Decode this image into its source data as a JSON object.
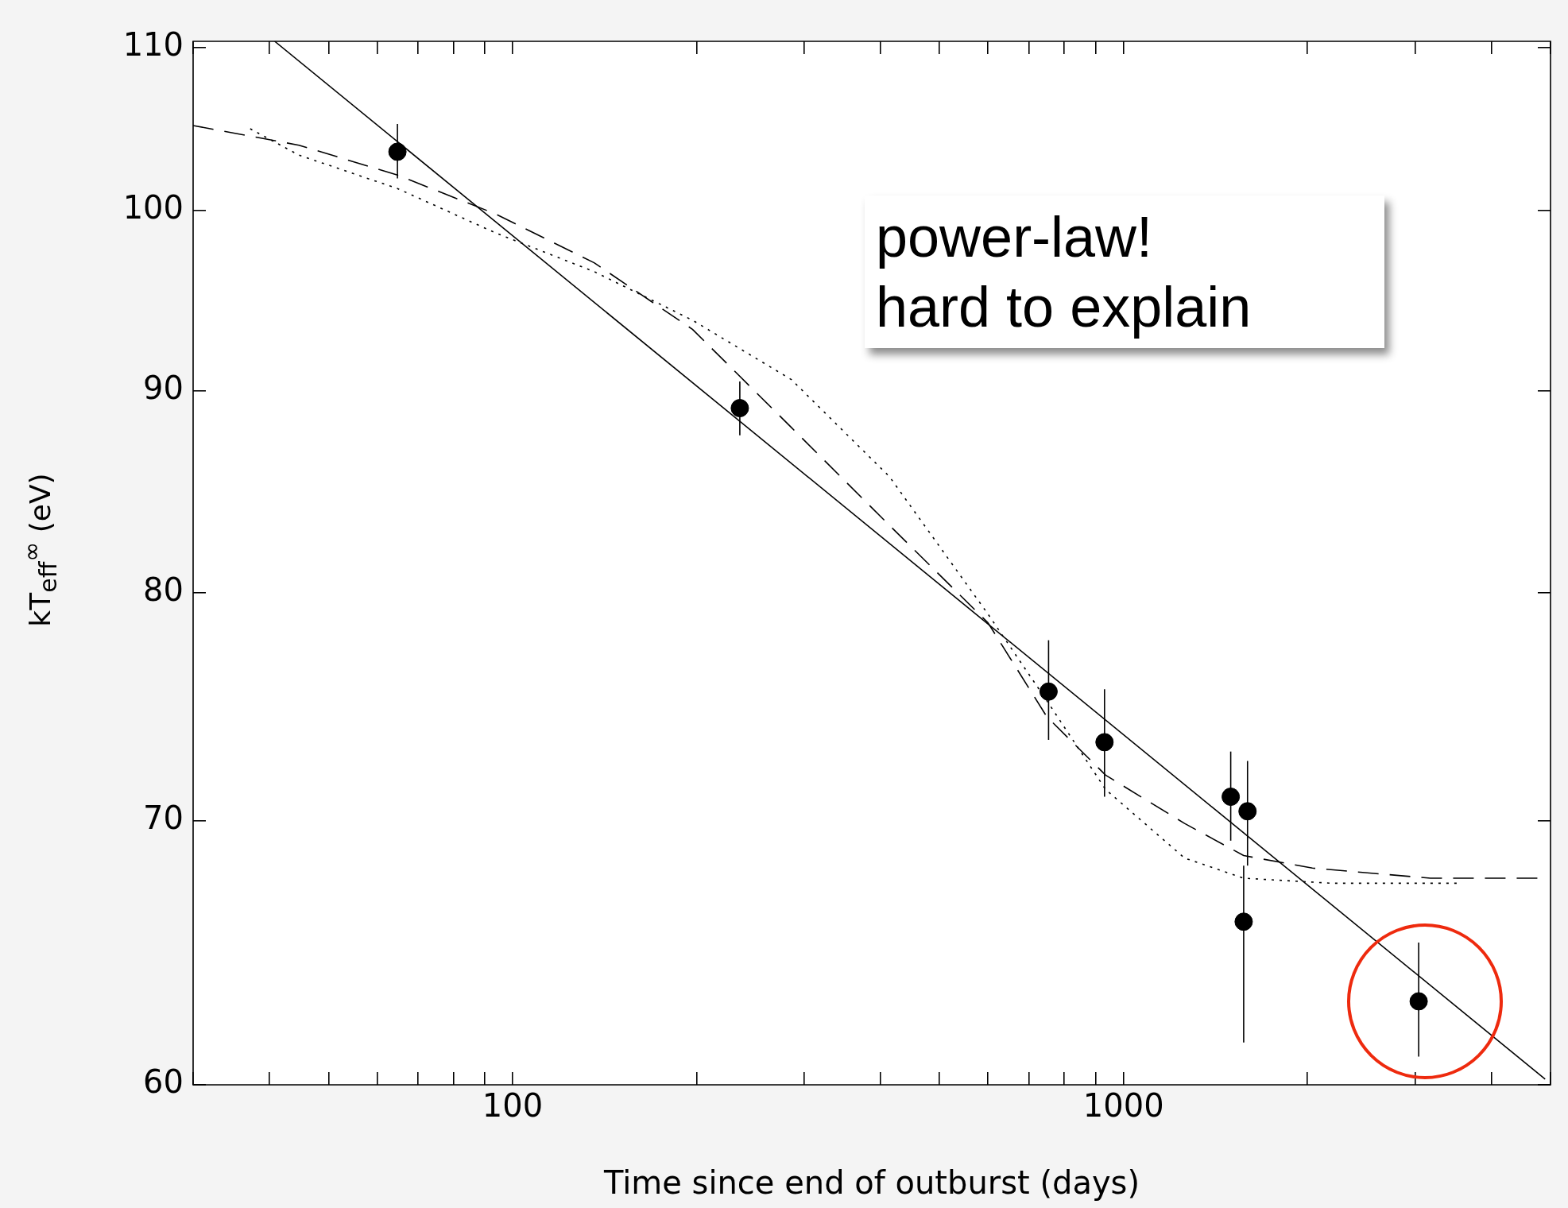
{
  "chart_data": {
    "type": "scatter",
    "xlabel": "Time since end of outburst (days)",
    "ylabel": "kT$_{eff}$$^{∞}$ (eV)",
    "annotations": [
      "power-law!\nhard to explain"
    ],
    "log": "xy",
    "grid": false,
    "legend": false,
    "xlim": [
      30,
      5000
    ],
    "ylim": [
      60,
      110.4
    ],
    "xticks": [
      {
        "value": 30,
        "label": null
      },
      {
        "value": 40,
        "label": null
      },
      {
        "value": 50,
        "label": null
      },
      {
        "value": 60,
        "label": null
      },
      {
        "value": 70,
        "label": null
      },
      {
        "value": 80,
        "label": null
      },
      {
        "value": 90,
        "label": null
      },
      100,
      {
        "value": 200,
        "label": null
      },
      {
        "value": 300,
        "label": null
      },
      {
        "value": 400,
        "label": null
      },
      {
        "value": 500,
        "label": null
      },
      {
        "value": 600,
        "label": null
      },
      {
        "value": 700,
        "label": null
      },
      {
        "value": 800,
        "label": null
      },
      {
        "value": 900,
        "label": null
      },
      1000,
      {
        "value": 2000,
        "label": null
      },
      {
        "value": 3000,
        "label": null
      },
      {
        "value": 4000,
        "label": null
      },
      {
        "value": 5000,
        "label": null
      }
    ],
    "yticks": [
      60,
      70,
      80,
      90,
      100,
      110
    ],
    "series": [
      {
        "type": "line",
        "line_style": "solid",
        "color": "#000000",
        "x": [
          40.8,
          4900
        ],
        "values": [
          110.4,
          60.2
        ]
      },
      {
        "type": "line",
        "line_style": "dashed",
        "color": "#000000",
        "x": [
          30,
          44.7,
          64.8,
          93.9,
          136,
          197,
          286,
          414,
          600,
          749,
          935,
          1259,
          1573,
          2038,
          3180,
          4900
        ],
        "values": [
          105.1,
          103.9,
          102.1,
          99.8,
          97.0,
          93.3,
          88.1,
          83.2,
          78.6,
          74.4,
          71.9,
          69.9,
          68.6,
          68.1,
          67.7,
          67.7
        ]
      },
      {
        "type": "line",
        "line_style": "dotted",
        "color": "#000000",
        "x": [
          37.2,
          44.7,
          64.8,
          93.9,
          136,
          197,
          286,
          414,
          600,
          749,
          935,
          1259,
          1573,
          2195,
          3554
        ],
        "values": [
          104.9,
          103.3,
          101.3,
          98.7,
          96.5,
          93.8,
          90.6,
          85.6,
          79.0,
          75.1,
          71.3,
          68.5,
          67.7,
          67.5,
          67.5
        ]
      },
      {
        "marker": "circle",
        "color": "#000000",
        "x": [
          64.8,
          235.5,
          754,
          931,
          1498,
          1596,
          1573,
          3042
        ],
        "values": [
          103.5,
          89.1,
          75.5,
          73.3,
          71.0,
          70.4,
          66.0,
          63.0
        ],
        "errors": [
          [
            101.9,
            105.2
          ],
          [
            87.7,
            90.5
          ],
          [
            73.4,
            77.8
          ],
          [
            71.0,
            75.6
          ],
          [
            69.2,
            72.9
          ],
          [
            68.2,
            72.5
          ],
          [
            61.5,
            68.2
          ],
          [
            61.0,
            65.2
          ]
        ]
      }
    ]
  }
}
